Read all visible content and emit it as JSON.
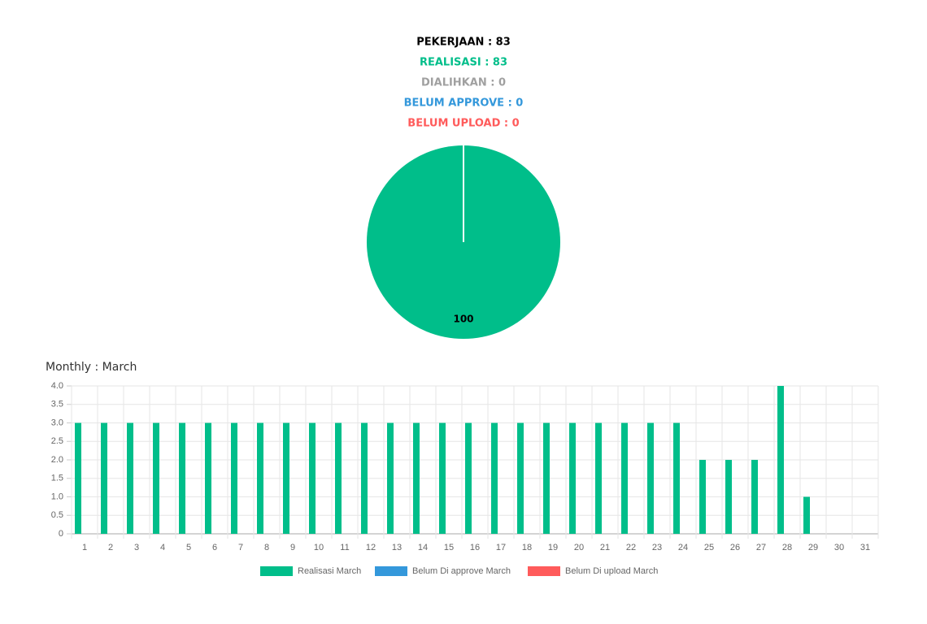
{
  "summary": [
    {
      "text": "PEKERJAAN : 83",
      "color": "#000000"
    },
    {
      "text": "REALISASI : 83",
      "color": "#00be8a"
    },
    {
      "text": "DIALIHKAN : 0",
      "color": "#a0a0a0"
    },
    {
      "text": "BELUM APPROVE : 0",
      "color": "#3498db"
    },
    {
      "text": "BELUM UPLOAD : 0",
      "color": "#ff5b5b"
    }
  ],
  "chart_data": [
    {
      "type": "pie",
      "values": [
        100
      ],
      "colors": [
        "#00be8a"
      ]
    },
    {
      "type": "bar",
      "title": "Monthly : March",
      "categories": [
        "1",
        "2",
        "3",
        "4",
        "5",
        "6",
        "7",
        "8",
        "9",
        "10",
        "11",
        "12",
        "13",
        "14",
        "15",
        "16",
        "17",
        "18",
        "19",
        "20",
        "21",
        "22",
        "23",
        "24",
        "25",
        "26",
        "27",
        "28",
        "29",
        "30",
        "31"
      ],
      "series": [
        {
          "name": "Realisasi March",
          "color": "#00be8a",
          "values": [
            3,
            3,
            3,
            3,
            3,
            3,
            3,
            3,
            3,
            3,
            3,
            3,
            3,
            3,
            3,
            3,
            3,
            3,
            3,
            3,
            3,
            3,
            3,
            3,
            2,
            2,
            2,
            4,
            1,
            0,
            0
          ]
        },
        {
          "name": "Belum Di approve March",
          "color": "#3498db",
          "values": [
            0,
            0,
            0,
            0,
            0,
            0,
            0,
            0,
            0,
            0,
            0,
            0,
            0,
            0,
            0,
            0,
            0,
            0,
            0,
            0,
            0,
            0,
            0,
            0,
            0,
            0,
            0,
            0,
            0,
            0,
            0
          ]
        },
        {
          "name": "Belum Di upload March",
          "color": "#ff5b5b",
          "values": [
            0,
            0,
            0,
            0,
            0,
            0,
            0,
            0,
            0,
            0,
            0,
            0,
            0,
            0,
            0,
            0,
            0,
            0,
            0,
            0,
            0,
            0,
            0,
            0,
            0,
            0,
            0,
            0,
            0,
            0,
            0
          ]
        }
      ],
      "ylim": [
        0,
        4
      ],
      "yticks": [
        0,
        0.5,
        {
          "value": 1,
          "label": "1.0"
        },
        1.5,
        {
          "value": 2,
          "label": "2.0"
        },
        2.5,
        {
          "value": 3,
          "label": "3.0"
        },
        3.5,
        {
          "value": 4,
          "label": "4.0"
        }
      ],
      "grid": true
    }
  ]
}
